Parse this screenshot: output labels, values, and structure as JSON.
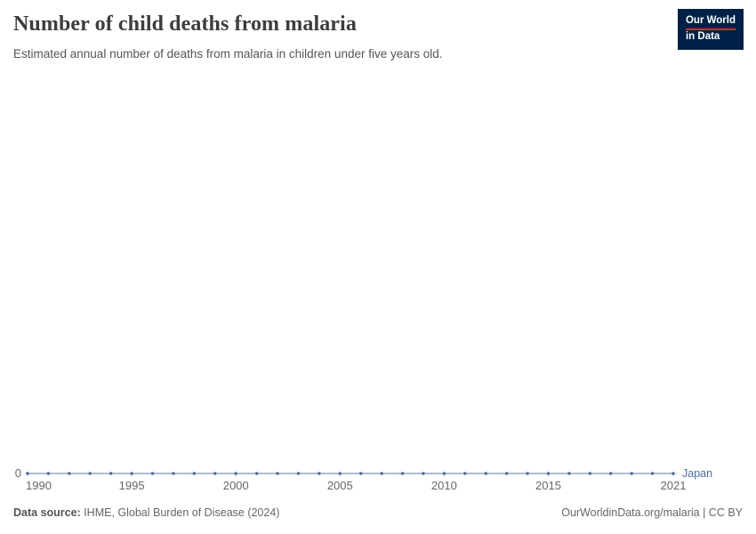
{
  "header": {
    "title": "Number of child deaths from malaria",
    "subtitle": "Estimated annual number of deaths from malaria in children under five years old.",
    "logo": {
      "line1": "Our World",
      "line2": "in Data"
    }
  },
  "chart_data": {
    "type": "line",
    "title": "Number of child deaths from malaria",
    "xlabel": "",
    "ylabel": "",
    "xlim": [
      1990,
      2021
    ],
    "ylim": [
      0,
      1
    ],
    "grid": false,
    "legend_position": "right-of-line",
    "x": [
      1990,
      1991,
      1992,
      1993,
      1994,
      1995,
      1996,
      1997,
      1998,
      1999,
      2000,
      2001,
      2002,
      2003,
      2004,
      2005,
      2006,
      2007,
      2008,
      2009,
      2010,
      2011,
      2012,
      2013,
      2014,
      2015,
      2016,
      2017,
      2018,
      2019,
      2020,
      2021
    ],
    "series": [
      {
        "name": "Japan",
        "color": "#4C6A9C",
        "values": [
          0,
          0,
          0,
          0,
          0,
          0,
          0,
          0,
          0,
          0,
          0,
          0,
          0,
          0,
          0,
          0,
          0,
          0,
          0,
          0,
          0,
          0,
          0,
          0,
          0,
          0,
          0,
          0,
          0,
          0,
          0,
          0
        ]
      }
    ],
    "x_ticks": [
      1990,
      1995,
      2000,
      2005,
      2010,
      2015,
      2021
    ],
    "y_ticks": [
      "0"
    ]
  },
  "footer": {
    "source_label": "Data source:",
    "source_text": " IHME, Global Burden of Disease (2024)",
    "credit": "OurWorldinData.org/malaria | CC BY"
  }
}
